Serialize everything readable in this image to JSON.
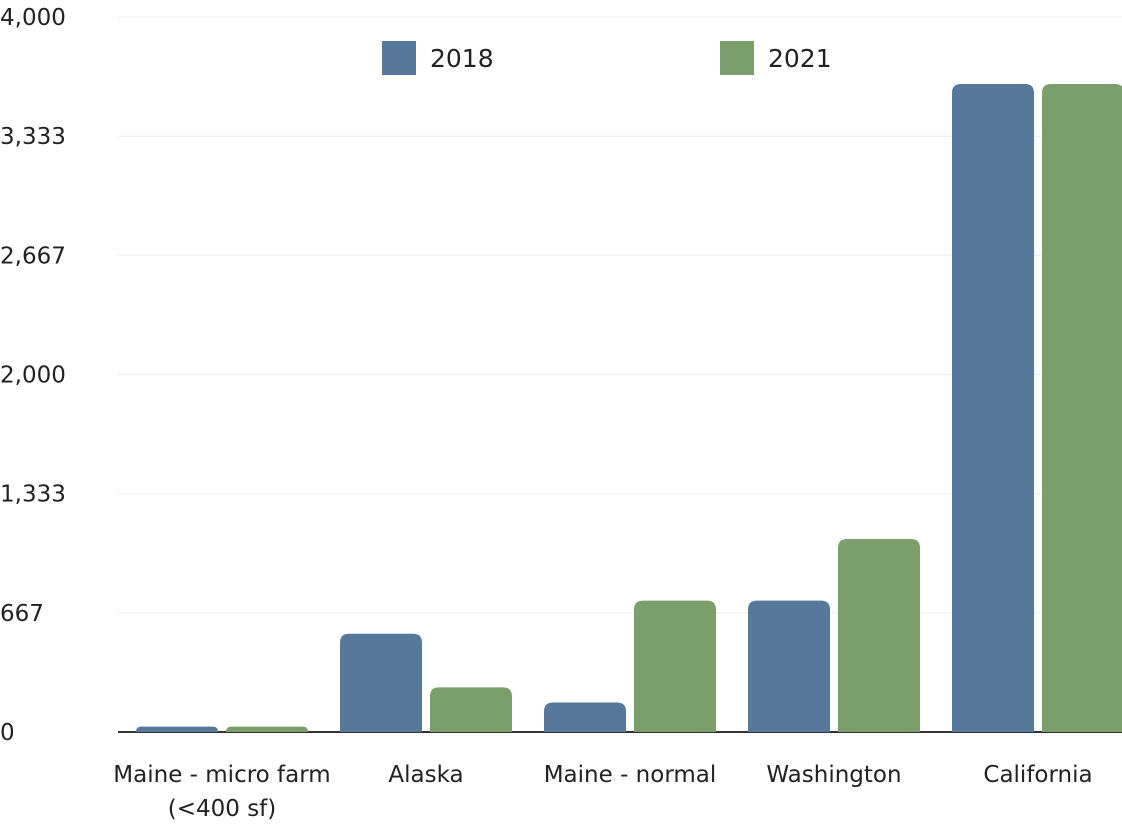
{
  "chart_data": {
    "type": "bar",
    "title": "",
    "xlabel": "",
    "ylabel": "",
    "categories": [
      "Maine - micro farm\n(<400 sf)",
      "Alaska",
      "Maine - normal",
      "Washington",
      "California"
    ],
    "series": [
      {
        "name": "2018",
        "color": "#56789a",
        "values": [
          30,
          550,
          165,
          735,
          3625
        ]
      },
      {
        "name": "2021",
        "color": "#7b9f6b",
        "values": [
          30,
          250,
          735,
          1080,
          3625
        ]
      }
    ],
    "ylim": [
      0,
      4000
    ],
    "yticks": [
      0,
      667,
      1333,
      2000,
      2667,
      3333,
      4000
    ],
    "ytick_labels": [
      "0",
      "667",
      "1,333",
      "2,000",
      "2,667",
      "3,333",
      "4,000"
    ],
    "grid": true,
    "legend_position": "top"
  }
}
